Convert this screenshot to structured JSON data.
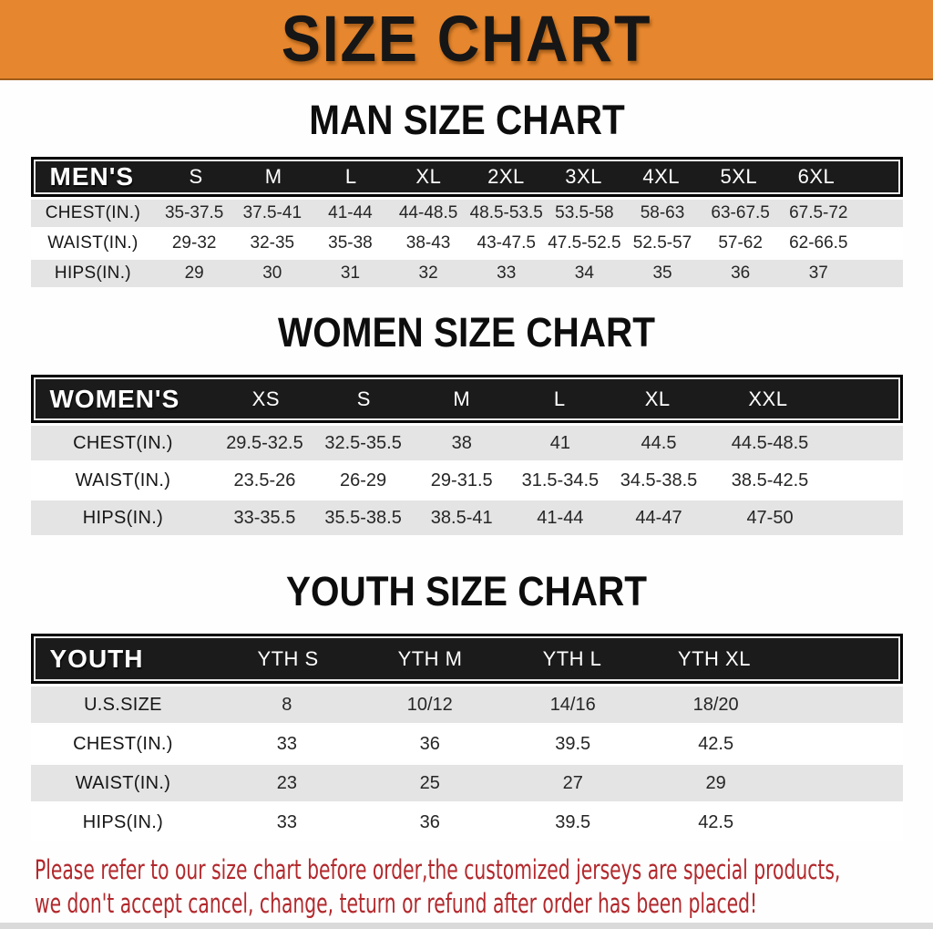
{
  "banner": {
    "title": "SIZE CHART",
    "bg_color": "#e6862e"
  },
  "man_chart": {
    "heading": "MAN SIZE CHART",
    "header": {
      "label": "MEN'S",
      "columns": [
        "S",
        "M",
        "L",
        "XL",
        "2XL",
        "3XL",
        "4XL",
        "5XL",
        "6XL"
      ]
    },
    "rows": [
      {
        "label": "CHEST(IN.)",
        "values": [
          "35-37.5",
          "37.5-41",
          "41-44",
          "44-48.5",
          "48.5-53.5",
          "53.5-58",
          "58-63",
          "63-67.5",
          "67.5-72"
        ]
      },
      {
        "label": "WAIST(IN.)",
        "values": [
          "29-32",
          "32-35",
          "35-38",
          "38-43",
          "43-47.5",
          "47.5-52.5",
          "52.5-57",
          "57-62",
          "62-66.5"
        ]
      },
      {
        "label": "HIPS(IN.)",
        "values": [
          "29",
          "30",
          "31",
          "32",
          "33",
          "34",
          "35",
          "36",
          "37"
        ]
      }
    ]
  },
  "women_chart": {
    "heading": "WOMEN SIZE CHART",
    "header": {
      "label": "WOMEN'S",
      "columns": [
        "XS",
        "S",
        "M",
        "L",
        "XL",
        "XXL"
      ]
    },
    "rows": [
      {
        "label": "CHEST(IN.)",
        "values": [
          "29.5-32.5",
          "32.5-35.5",
          "38",
          "41",
          "44.5",
          "44.5-48.5"
        ]
      },
      {
        "label": "WAIST(IN.)",
        "values": [
          "23.5-26",
          "26-29",
          "29-31.5",
          "31.5-34.5",
          "34.5-38.5",
          "38.5-42.5"
        ]
      },
      {
        "label": "HIPS(IN.)",
        "values": [
          "33-35.5",
          "35.5-38.5",
          "38.5-41",
          "41-44",
          "44-47",
          "47-50"
        ]
      }
    ]
  },
  "youth_chart": {
    "heading": "YOUTH SIZE CHART",
    "header": {
      "label": "YOUTH",
      "columns": [
        "YTH S",
        "YTH M",
        "YTH L",
        "YTH XL"
      ]
    },
    "rows": [
      {
        "label": "U.S.SIZE",
        "values": [
          "8",
          "10/12",
          "14/16",
          "18/20"
        ]
      },
      {
        "label": "CHEST(IN.)",
        "values": [
          "33",
          "36",
          "39.5",
          "42.5"
        ]
      },
      {
        "label": "WAIST(IN.)",
        "values": [
          "23",
          "25",
          "27",
          "29"
        ]
      },
      {
        "label": "HIPS(IN.)",
        "values": [
          "33",
          "36",
          "39.5",
          "42.5"
        ]
      }
    ]
  },
  "disclaimer": {
    "line1": "Please refer to our size chart before order,the customized jerseys are special products,",
    "line2": "we don't accept cancel, change, teturn or refund after order has been placed!",
    "color": "#b2282c"
  },
  "colors": {
    "banner_orange": "#e6862e",
    "table_header_black": "#1b1b1b",
    "row_gray": "#e4e4e5",
    "value_text": "#262626"
  }
}
